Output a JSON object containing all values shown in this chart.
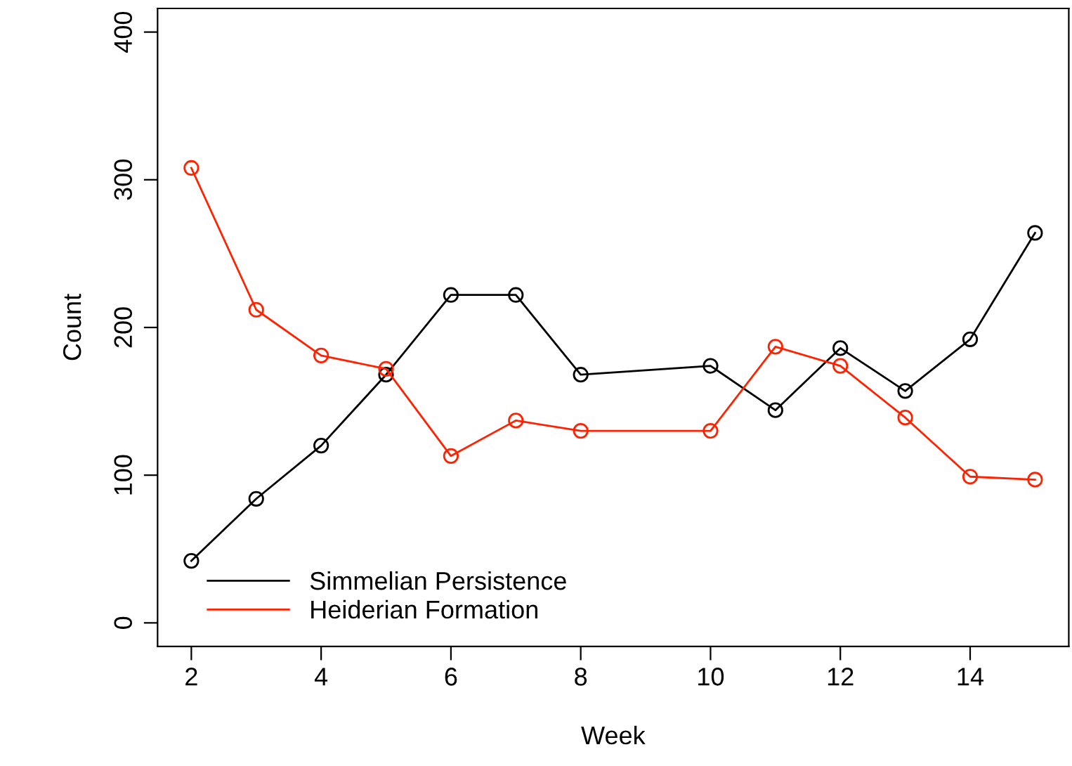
{
  "chart_data": {
    "type": "line",
    "xlabel": "Week",
    "ylabel": "Count",
    "x": [
      2,
      3,
      4,
      5,
      6,
      7,
      8,
      10,
      11,
      12,
      13,
      14,
      15
    ],
    "series": [
      {
        "name": "Simmelian Persistence",
        "color": "#000000",
        "values": [
          42,
          84,
          120,
          168,
          222,
          222,
          168,
          174,
          144,
          186,
          157,
          192,
          264
        ]
      },
      {
        "name": "Heiderian Formation",
        "color": "#ff2200",
        "values": [
          308,
          212,
          181,
          172,
          113,
          137,
          130,
          130,
          187,
          174,
          139,
          99,
          97
        ]
      }
    ],
    "xlim": [
      1.48,
      15.52
    ],
    "ylim": [
      -16,
      416
    ],
    "xticks": [
      2,
      4,
      6,
      8,
      10,
      12,
      14
    ],
    "yticks": [
      0,
      100,
      200,
      300,
      400
    ],
    "grid": false,
    "legend": "bottom left",
    "marker": "circle",
    "line_style": "solid"
  }
}
